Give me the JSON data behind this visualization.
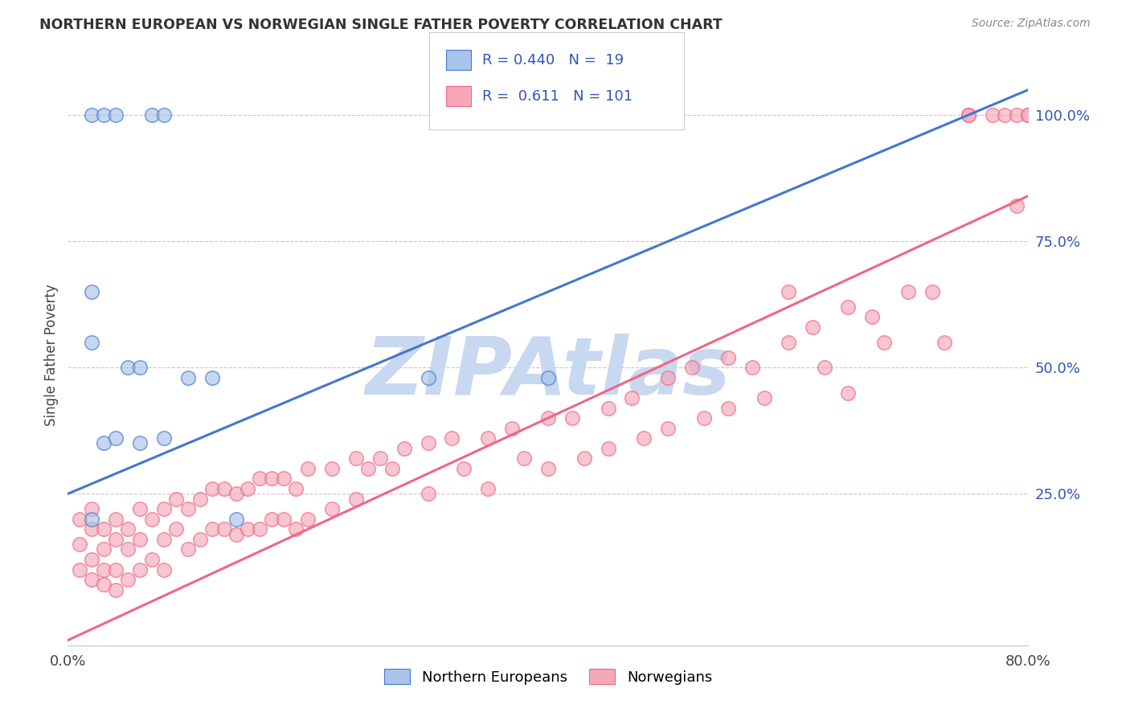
{
  "title": "NORTHERN EUROPEAN VS NORWEGIAN SINGLE FATHER POVERTY CORRELATION CHART",
  "source": "Source: ZipAtlas.com",
  "ylabel": "Single Father Poverty",
  "xlim": [
    0.0,
    0.8
  ],
  "ylim": [
    -0.05,
    1.1
  ],
  "blue_R": 0.44,
  "blue_N": 19,
  "pink_R": 0.611,
  "pink_N": 101,
  "blue_color": "#A8C4E8",
  "pink_color": "#F4A8B8",
  "blue_line_color": "#4477CC",
  "pink_line_color": "#EE6688",
  "legend_R_color": "#3355BB",
  "watermark_text": "ZIPAtlas",
  "watermark_color": "#C8D8F0",
  "blue_scatter_x": [
    0.02,
    0.03,
    0.04,
    0.07,
    0.08,
    0.02,
    0.02,
    0.02,
    0.03,
    0.04,
    0.05,
    0.06,
    0.06,
    0.08,
    0.1,
    0.12,
    0.14,
    0.3,
    0.4
  ],
  "blue_scatter_y": [
    1.0,
    1.0,
    1.0,
    1.0,
    1.0,
    0.65,
    0.55,
    0.2,
    0.35,
    0.36,
    0.5,
    0.5,
    0.35,
    0.36,
    0.48,
    0.48,
    0.2,
    0.48,
    0.48
  ],
  "blue_line_x": [
    0.0,
    0.8
  ],
  "blue_line_y": [
    0.25,
    1.05
  ],
  "pink_line_x": [
    0.0,
    0.8
  ],
  "pink_line_y": [
    -0.04,
    0.84
  ],
  "pink_scatter_x": [
    0.01,
    0.01,
    0.01,
    0.02,
    0.02,
    0.02,
    0.02,
    0.03,
    0.03,
    0.03,
    0.03,
    0.04,
    0.04,
    0.04,
    0.04,
    0.05,
    0.05,
    0.05,
    0.06,
    0.06,
    0.06,
    0.07,
    0.07,
    0.08,
    0.08,
    0.08,
    0.09,
    0.09,
    0.1,
    0.1,
    0.11,
    0.11,
    0.12,
    0.12,
    0.13,
    0.13,
    0.14,
    0.14,
    0.15,
    0.15,
    0.16,
    0.16,
    0.17,
    0.17,
    0.18,
    0.18,
    0.19,
    0.19,
    0.2,
    0.2,
    0.22,
    0.22,
    0.24,
    0.24,
    0.25,
    0.26,
    0.27,
    0.28,
    0.3,
    0.3,
    0.32,
    0.33,
    0.35,
    0.35,
    0.37,
    0.38,
    0.4,
    0.4,
    0.42,
    0.43,
    0.45,
    0.45,
    0.47,
    0.48,
    0.5,
    0.5,
    0.52,
    0.53,
    0.55,
    0.55,
    0.57,
    0.58,
    0.6,
    0.62,
    0.63,
    0.65,
    0.65,
    0.67,
    0.68,
    0.7,
    0.72,
    0.73,
    0.75,
    0.75,
    0.77,
    0.78,
    0.79,
    0.79,
    0.8,
    0.8,
    0.6
  ],
  "pink_scatter_y": [
    0.2,
    0.15,
    0.1,
    0.22,
    0.18,
    0.12,
    0.08,
    0.18,
    0.14,
    0.1,
    0.07,
    0.2,
    0.16,
    0.1,
    0.06,
    0.18,
    0.14,
    0.08,
    0.22,
    0.16,
    0.1,
    0.2,
    0.12,
    0.22,
    0.16,
    0.1,
    0.24,
    0.18,
    0.22,
    0.14,
    0.24,
    0.16,
    0.26,
    0.18,
    0.26,
    0.18,
    0.25,
    0.17,
    0.26,
    0.18,
    0.28,
    0.18,
    0.28,
    0.2,
    0.28,
    0.2,
    0.26,
    0.18,
    0.3,
    0.2,
    0.3,
    0.22,
    0.32,
    0.24,
    0.3,
    0.32,
    0.3,
    0.34,
    0.35,
    0.25,
    0.36,
    0.3,
    0.36,
    0.26,
    0.38,
    0.32,
    0.4,
    0.3,
    0.4,
    0.32,
    0.42,
    0.34,
    0.44,
    0.36,
    0.48,
    0.38,
    0.5,
    0.4,
    0.52,
    0.42,
    0.5,
    0.44,
    0.55,
    0.58,
    0.5,
    0.62,
    0.45,
    0.6,
    0.55,
    0.65,
    0.65,
    0.55,
    1.0,
    1.0,
    1.0,
    1.0,
    1.0,
    0.82,
    1.0,
    1.0,
    0.65
  ]
}
